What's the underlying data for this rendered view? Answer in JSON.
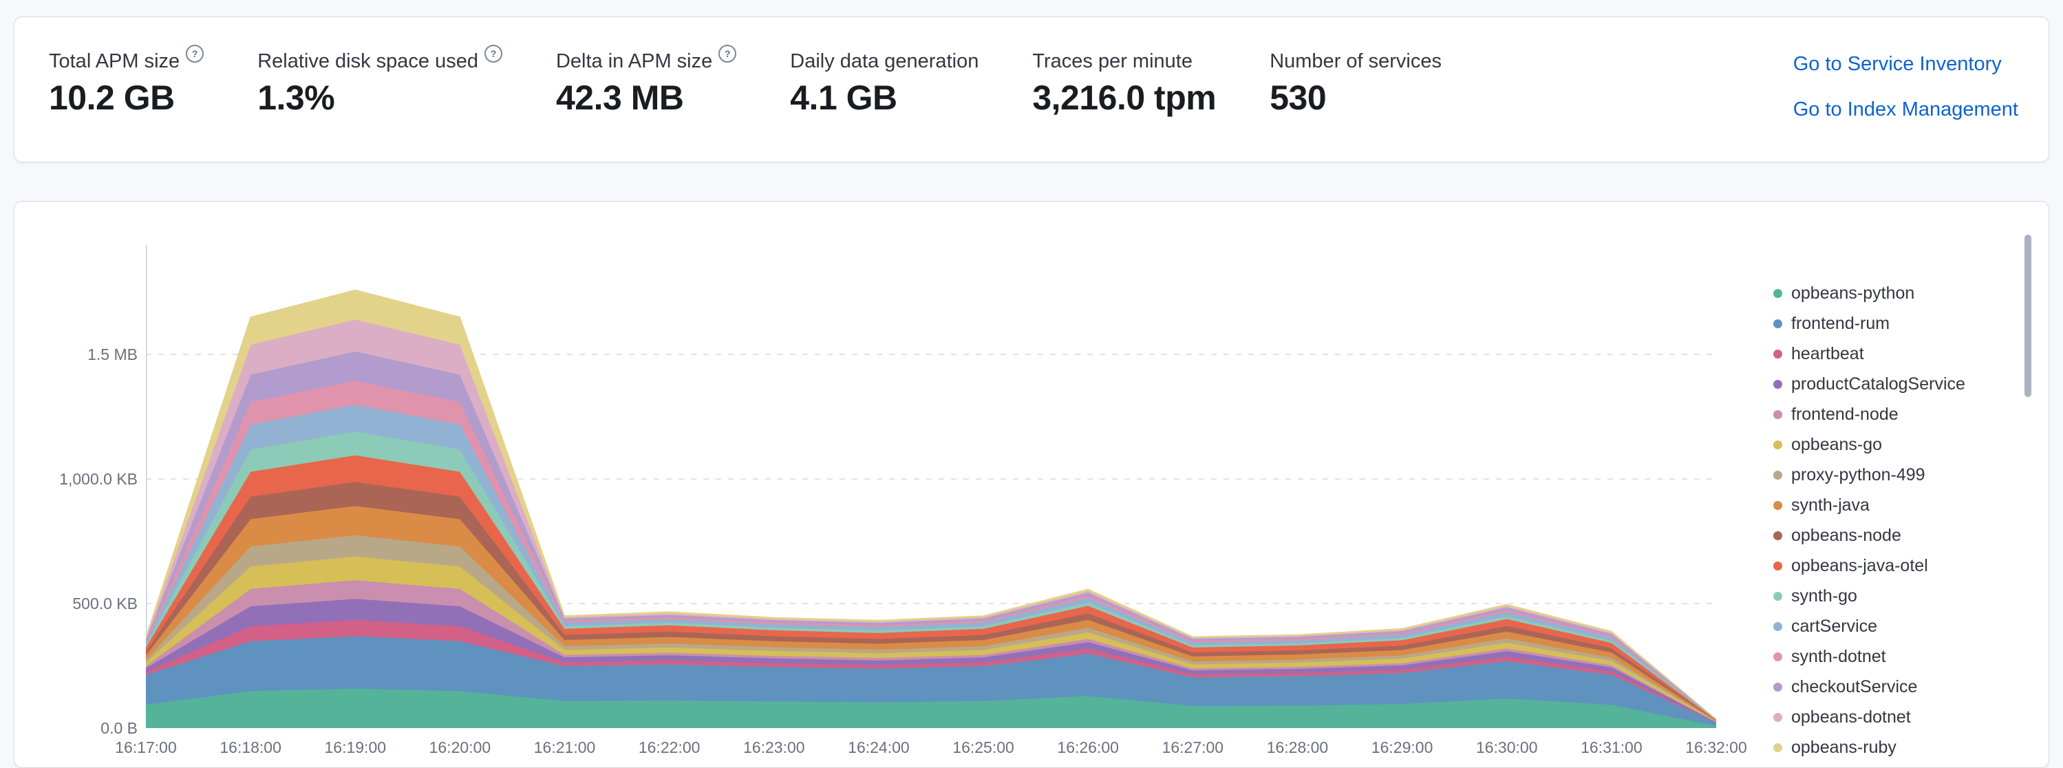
{
  "icons": {
    "question_in_circle": "?"
  },
  "summary": {
    "metrics": [
      {
        "label": "Total APM size",
        "value": "10.2 GB",
        "has_info": true
      },
      {
        "label": "Relative disk space used",
        "value": "1.3%",
        "has_info": true
      },
      {
        "label": "Delta in APM size",
        "value": "42.3 MB",
        "has_info": true
      },
      {
        "label": "Daily data generation",
        "value": "4.1 GB",
        "has_info": false
      },
      {
        "label": "Traces per minute",
        "value": "3,216.0 tpm",
        "has_info": false
      },
      {
        "label": "Number of services",
        "value": "530",
        "has_info": false
      }
    ],
    "links": [
      {
        "label": "Go to Service Inventory"
      },
      {
        "label": "Go to Index Management"
      }
    ]
  },
  "colors": {
    "link_blue": "#0e62d2",
    "panel_border": "#d3dae6",
    "axis_text": "#69707d",
    "gridline": "#dde2eb",
    "page_background": "#f7f8fc"
  },
  "chart_data": {
    "type": "area",
    "stacked": true,
    "title": "",
    "xlabel": "",
    "ylabel": "",
    "unit": "KB",
    "grid": true,
    "legend_position": "right",
    "ylim_kb": [
      0,
      1940
    ],
    "ytick_labels": [
      "0.0 B",
      "500.0 KB",
      "1,000.0 KB",
      "1.5 MB"
    ],
    "ytick_values_kb": [
      0,
      500,
      1000,
      1500
    ],
    "x": [
      "16:17:00",
      "16:18:00",
      "16:19:00",
      "16:20:00",
      "16:21:00",
      "16:22:00",
      "16:23:00",
      "16:24:00",
      "16:25:00",
      "16:26:00",
      "16:27:00",
      "16:28:00",
      "16:29:00",
      "16:30:00",
      "16:31:00",
      "16:32:00"
    ],
    "series": [
      {
        "name": "opbeans-python",
        "color": "#54B399",
        "values": [
          95,
          150,
          160,
          150,
          110,
          112,
          108,
          105,
          110,
          130,
          90,
          92,
          98,
          120,
          95,
          10
        ]
      },
      {
        "name": "frontend-rum",
        "color": "#6092C0",
        "values": [
          120,
          200,
          210,
          200,
          140,
          145,
          138,
          135,
          140,
          170,
          115,
          118,
          124,
          150,
          120,
          12
        ]
      },
      {
        "name": "heartbeat",
        "color": "#D36086",
        "values": [
          12,
          60,
          65,
          60,
          15,
          16,
          15,
          14,
          15,
          20,
          12,
          12,
          13,
          17,
          13,
          1
        ]
      },
      {
        "name": "productCatalogService",
        "color": "#9170B8",
        "values": [
          15,
          80,
          85,
          80,
          20,
          21,
          20,
          19,
          20,
          26,
          16,
          17,
          18,
          23,
          17,
          2
        ]
      },
      {
        "name": "frontend-node",
        "color": "#CA8EAE",
        "values": [
          8,
          70,
          75,
          70,
          10,
          10,
          10,
          10,
          10,
          13,
          8,
          8,
          9,
          11,
          9,
          1
        ]
      },
      {
        "name": "opbeans-go",
        "color": "#D6BF57",
        "values": [
          15,
          90,
          95,
          90,
          20,
          21,
          20,
          19,
          20,
          26,
          16,
          17,
          18,
          23,
          17,
          2
        ]
      },
      {
        "name": "proxy-python-499",
        "color": "#B9A888",
        "values": [
          11,
          80,
          85,
          80,
          15,
          16,
          15,
          14,
          15,
          19,
          12,
          12,
          13,
          17,
          13,
          1
        ]
      },
      {
        "name": "synth-java",
        "color": "#DA8B45",
        "values": [
          18,
          110,
          118,
          110,
          25,
          26,
          24,
          24,
          25,
          32,
          20,
          21,
          22,
          28,
          21,
          2
        ]
      },
      {
        "name": "opbeans-node",
        "color": "#AA6556",
        "values": [
          14,
          90,
          96,
          90,
          20,
          21,
          20,
          19,
          20,
          25,
          16,
          16,
          17,
          22,
          17,
          1
        ]
      },
      {
        "name": "opbeans-java-otel",
        "color": "#E7664C",
        "values": [
          18,
          100,
          107,
          100,
          25,
          26,
          24,
          24,
          25,
          31,
          20,
          20,
          22,
          28,
          21,
          2
        ]
      },
      {
        "name": "synth-go",
        "color": "#8CCBB8",
        "values": [
          8,
          90,
          96,
          90,
          10,
          10,
          10,
          10,
          10,
          13,
          8,
          8,
          9,
          11,
          9,
          1
        ]
      },
      {
        "name": "cartService",
        "color": "#92B2D3",
        "values": [
          11,
          100,
          107,
          100,
          15,
          15,
          14,
          14,
          15,
          19,
          12,
          12,
          13,
          17,
          13,
          1
        ]
      },
      {
        "name": "synth-dotnet",
        "color": "#E093AC",
        "values": [
          6,
          90,
          96,
          90,
          8,
          8,
          8,
          8,
          8,
          10,
          7,
          7,
          7,
          9,
          7,
          0
        ]
      },
      {
        "name": "checkoutService",
        "color": "#B19CCD",
        "values": [
          6,
          110,
          118,
          110,
          8,
          8,
          8,
          8,
          8,
          10,
          7,
          7,
          7,
          9,
          7,
          0
        ]
      },
      {
        "name": "opbeans-dotnet",
        "color": "#DBAEC5",
        "values": [
          5,
          120,
          128,
          120,
          5,
          6,
          5,
          5,
          5,
          7,
          4,
          4,
          5,
          6,
          5,
          0
        ]
      },
      {
        "name": "opbeans-ruby",
        "color": "#E2D28A",
        "values": [
          5,
          110,
          118,
          110,
          5,
          6,
          5,
          5,
          5,
          7,
          4,
          4,
          5,
          6,
          5,
          0
        ]
      }
    ]
  }
}
